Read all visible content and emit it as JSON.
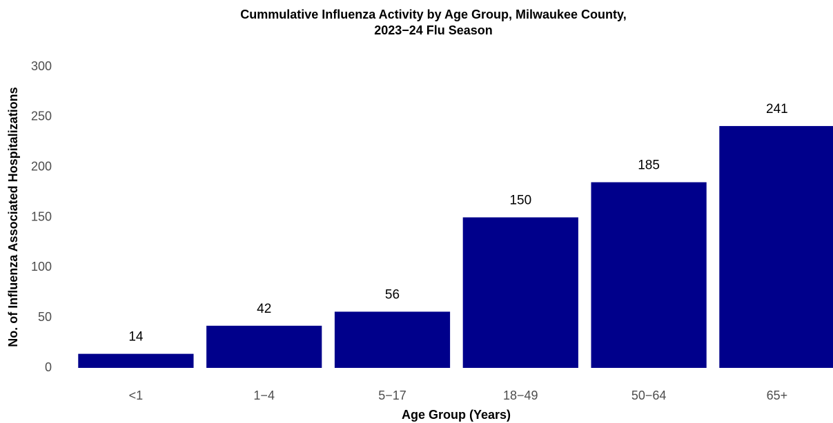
{
  "chart_data": {
    "type": "bar",
    "title": [
      "Cummulative Influenza Activity by Age Group, Milwaukee County,",
      "2023−24 Flu Season"
    ],
    "x_label": "Age Group (Years)",
    "y_label": "No. of Influenza Associated Hospitalizations",
    "categories": [
      "<1",
      "1−4",
      "5−17",
      "18−49",
      "50−64",
      "65+"
    ],
    "values": [
      14,
      42,
      56,
      150,
      185,
      241
    ],
    "color": "#00008b",
    "ylim": [
      0,
      300
    ],
    "yticks": [
      0,
      50,
      100,
      150,
      200,
      250,
      300
    ],
    "grid": false
  }
}
